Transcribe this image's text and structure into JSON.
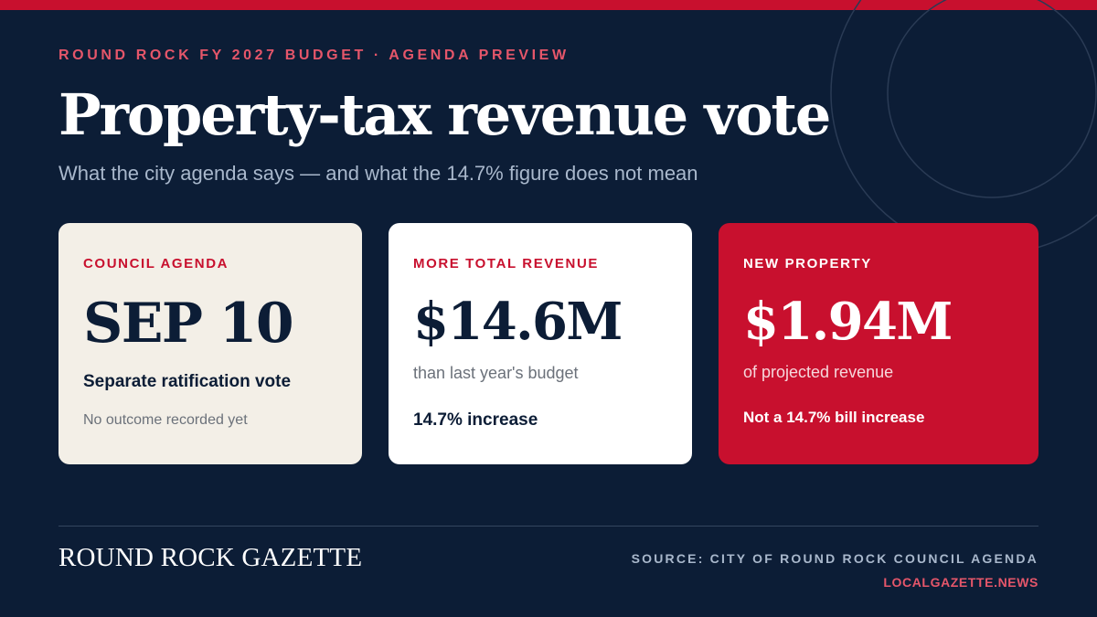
{
  "header": {
    "kicker": "ROUND ROCK FY 2027 BUDGET · AGENDA PREVIEW",
    "title": "Property-tax revenue vote",
    "subtitle": "What the city agenda says — and what the 14.7% figure does not mean"
  },
  "cards": [
    {
      "label": "COUNCIL AGENDA",
      "value": "SEP 10",
      "line1": "Separate ratification vote",
      "line2": "No outcome recorded yet"
    },
    {
      "label": "MORE TOTAL REVENUE",
      "value": "$14.6M",
      "line1": "than last year's budget",
      "line2": "14.7% increase"
    },
    {
      "label": "NEW PROPERTY",
      "value": "$1.94M",
      "line1": "of projected revenue",
      "line2": "Not a 14.7% bill increase"
    }
  ],
  "footer": {
    "brand": "ROUND ROCK GAZETTE",
    "source": "SOURCE: CITY OF ROUND ROCK COUNCIL AGENDA",
    "site": "LOCALGAZETTE.NEWS"
  },
  "colors": {
    "background": "#0c1d36",
    "accent": "#c8102e",
    "kicker": "#e5566a",
    "card_light": "#f3efe7",
    "card_white": "#ffffff"
  }
}
